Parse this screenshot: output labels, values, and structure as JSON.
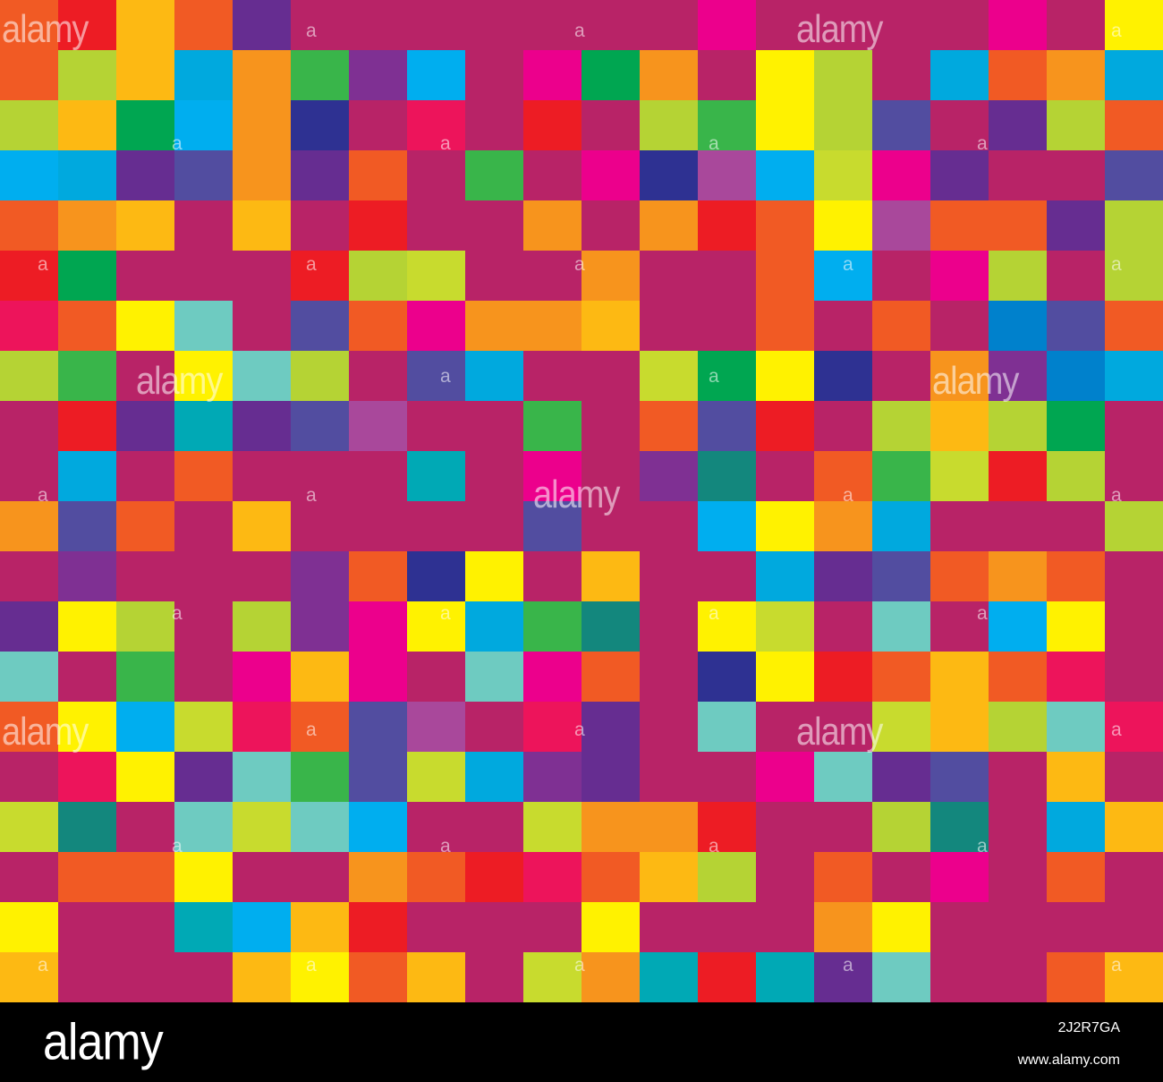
{
  "palette": {
    "M": "#B82367",
    "R": "#ED1C24",
    "Y": "#FFF200",
    "G": "#FDB913",
    "O": "#F7941D",
    "T": "#F15A24",
    "L": "#B5D334",
    "W": "#C8DB2E",
    "N": "#00A651",
    "E": "#39B54A",
    "C": "#00AEEF",
    "K": "#00A9DE",
    "B": "#0081CC",
    "I": "#2E3192",
    "S": "#524DA0",
    "P": "#662D91",
    "V": "#7F3093",
    "A": "#A9489B",
    "H": "#EC008C",
    "D": "#ED145B",
    "Q": "#6ECBC1",
    "Z": "#00A9B5",
    "X": "#13877D"
  },
  "mosaic": {
    "rows": [
      "TRGTPMMMMMMMHMMMMHMY",
      "TLGKOEVCMHNOMYLMKTOK",
      "LGNCOIMDMRMLEYLSMPLT",
      "CKPSOPTMEMHIACWHPMMS",
      "TOGMGMRMMOMORTYATTPL",
      "RNMMMRLWMMOMMTCMHLML",
      "DTYQMSTHOOGMMTMTMBST",
      "LEMYQLMSKMMWNYIMOVBK",
      "MRPZPSAMMEMTSRMLGLNM",
      "MKMTMMMZMHMVXMTEWRLM",
      "OSTMGMMMMSMMCYOKMMML",
      "MVMMMVTIYMGMMKPSTOTM",
      "PYLMLVHYKEXMYWMQMCYM",
      "QMEMHGHMQHTMIYRTGTDM",
      "TYCWDTSAMDPMQMMWGLQD",
      "MDYPQESWKVPMMHQPSMGM",
      "WXMQWQCMMWOORMMLXMKG",
      "MTTYMMOTRDTGLMTMHMTM",
      "YMMZCGRMMMYMMMOYMMMM",
      "GMMMGYTGMWOZRZPQMMTG"
    ]
  },
  "watermarks": {
    "big_text": "alamy",
    "small_text": "a"
  },
  "footer": {
    "logo": "alamy",
    "image_id": "2J2R7GA",
    "url": "www.alamy.com"
  },
  "icons": {
    "logo": "alamy-logo"
  }
}
